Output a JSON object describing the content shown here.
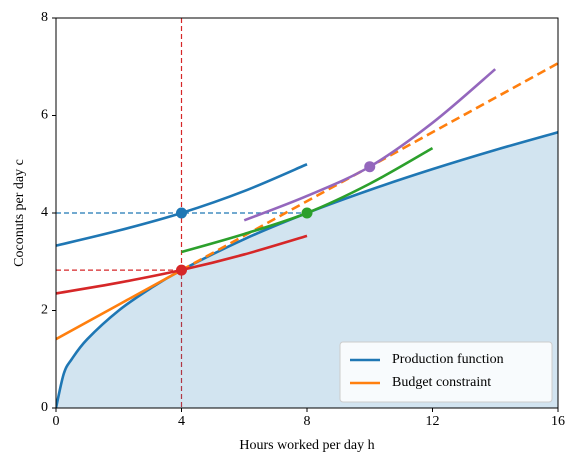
{
  "chart_data": {
    "type": "line",
    "xlabel": "Hours worked per day h",
    "ylabel": "Coconuts per day c",
    "xlim": [
      0,
      16
    ],
    "ylim": [
      0,
      8
    ],
    "xticks": [
      0,
      4,
      8,
      12,
      16
    ],
    "yticks": [
      0,
      2,
      4,
      6,
      8
    ],
    "grid": false,
    "legend": "lower right",
    "series": [
      {
        "name": "Production function",
        "color": "#1f77b4",
        "fill": true,
        "x": [
          0,
          0.25,
          0.5,
          1,
          2,
          3,
          4,
          6,
          8,
          10,
          12,
          14,
          16
        ],
        "values": [
          0,
          0.707,
          1,
          1.414,
          2,
          2.449,
          2.828,
          3.464,
          4,
          4.472,
          4.899,
          5.292,
          5.657
        ]
      },
      {
        "name": "Budget constraint",
        "color": "#ff7f0e",
        "x": [
          0,
          4
        ],
        "values": [
          1.414,
          2.828
        ]
      },
      {
        "color": "#ff7f0e",
        "dashed": true,
        "x": [
          4,
          16
        ],
        "values": [
          2.828,
          7.071
        ]
      },
      {
        "color": "#1f77b4",
        "x": [
          0,
          2,
          4,
          6,
          8
        ],
        "values": [
          3.33,
          3.64,
          4.0,
          4.45,
          5.0
        ]
      },
      {
        "color": "#d62728",
        "x": [
          0,
          2,
          4,
          6,
          8
        ],
        "values": [
          2.35,
          2.57,
          2.83,
          3.15,
          3.53
        ]
      },
      {
        "color": "#2ca02c",
        "x": [
          4,
          6,
          8,
          10,
          12
        ],
        "values": [
          3.2,
          3.57,
          4.0,
          4.6,
          5.33
        ]
      },
      {
        "color": "#9467bd",
        "x": [
          6,
          8,
          10,
          12,
          14
        ],
        "values": [
          3.85,
          4.35,
          4.95,
          5.85,
          6.95
        ]
      }
    ],
    "reference_lines": [
      {
        "x": 4,
        "color": "#d62728"
      },
      {
        "y": 2.828,
        "x_range": [
          0,
          4
        ],
        "color": "#d62728"
      },
      {
        "y": 4,
        "x_range": [
          0,
          8
        ],
        "color": "#1f77b4"
      }
    ],
    "markers": [
      {
        "x": 4,
        "y": 4,
        "color": "#1f77b4"
      },
      {
        "x": 4,
        "y": 2.828,
        "color": "#d62728"
      },
      {
        "x": 8,
        "y": 4,
        "color": "#2ca02c"
      },
      {
        "x": 10,
        "y": 4.95,
        "color": "#9467bd"
      }
    ]
  }
}
